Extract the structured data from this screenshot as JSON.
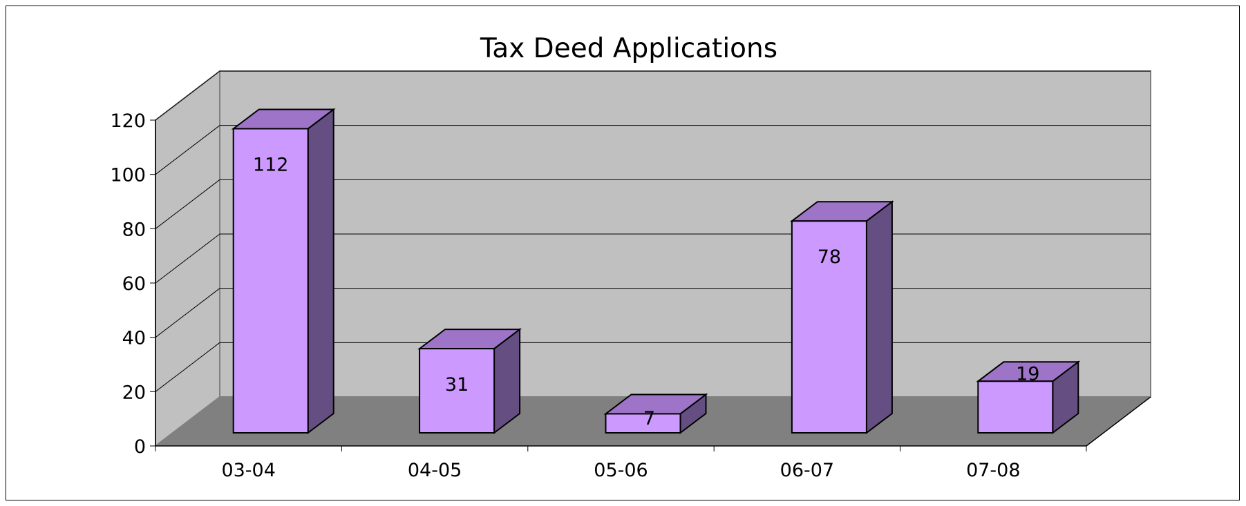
{
  "chart_data": {
    "type": "bar",
    "title": "Tax Deed Applications",
    "categories": [
      "03-04",
      "04-05",
      "05-06",
      "06-07",
      "07-08"
    ],
    "values": [
      112,
      31,
      7,
      78,
      19
    ],
    "ylim": [
      0,
      120
    ],
    "yticks": [
      0,
      20,
      40,
      60,
      80,
      100,
      120
    ],
    "grid": true,
    "three_d": true,
    "colors": {
      "bar_front": "#cc99ff",
      "bar_top": "#9d74c7",
      "bar_side": "#654f82",
      "wall": "#c0c0c0",
      "floor": "#808080"
    }
  }
}
